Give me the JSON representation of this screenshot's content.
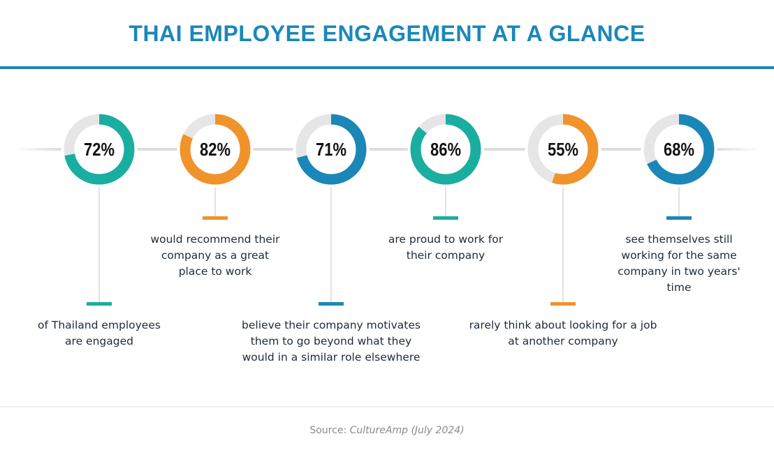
{
  "title": "THAI EMPLOYEE ENGAGEMENT AT A GLANCE",
  "colors": {
    "teal": "#1aaea0",
    "orange": "#f0932b",
    "blue": "#1b87b8",
    "track": "#e6e6e6"
  },
  "chart_data": {
    "type": "pie",
    "subtype": "donut",
    "title": "THAI EMPLOYEE ENGAGEMENT AT A GLANCE",
    "items": [
      {
        "value": 72,
        "label": "72%",
        "color": "#1aaea0",
        "description": "of Thailand employees are engaged",
        "position": "low"
      },
      {
        "value": 82,
        "label": "82%",
        "color": "#f0932b",
        "description": "would recommend their company as a great place to work",
        "position": "high"
      },
      {
        "value": 71,
        "label": "71%",
        "color": "#1b87b8",
        "description": "believe their company motivates them to go beyond what they would in a similar role elsewhere",
        "position": "low"
      },
      {
        "value": 86,
        "label": "86%",
        "color": "#1aaea0",
        "description": "are proud to work for their company",
        "position": "high"
      },
      {
        "value": 55,
        "label": "55%",
        "color": "#f0932b",
        "description": "rarely think about looking for a job at another company",
        "position": "low"
      },
      {
        "value": 68,
        "label": "68%",
        "color": "#1b87b8",
        "description": "see themselves still working for the same company in two years' time",
        "position": "high"
      }
    ]
  },
  "source": {
    "prefix": "Source: ",
    "name": "CultureAmp (July 2024)"
  }
}
